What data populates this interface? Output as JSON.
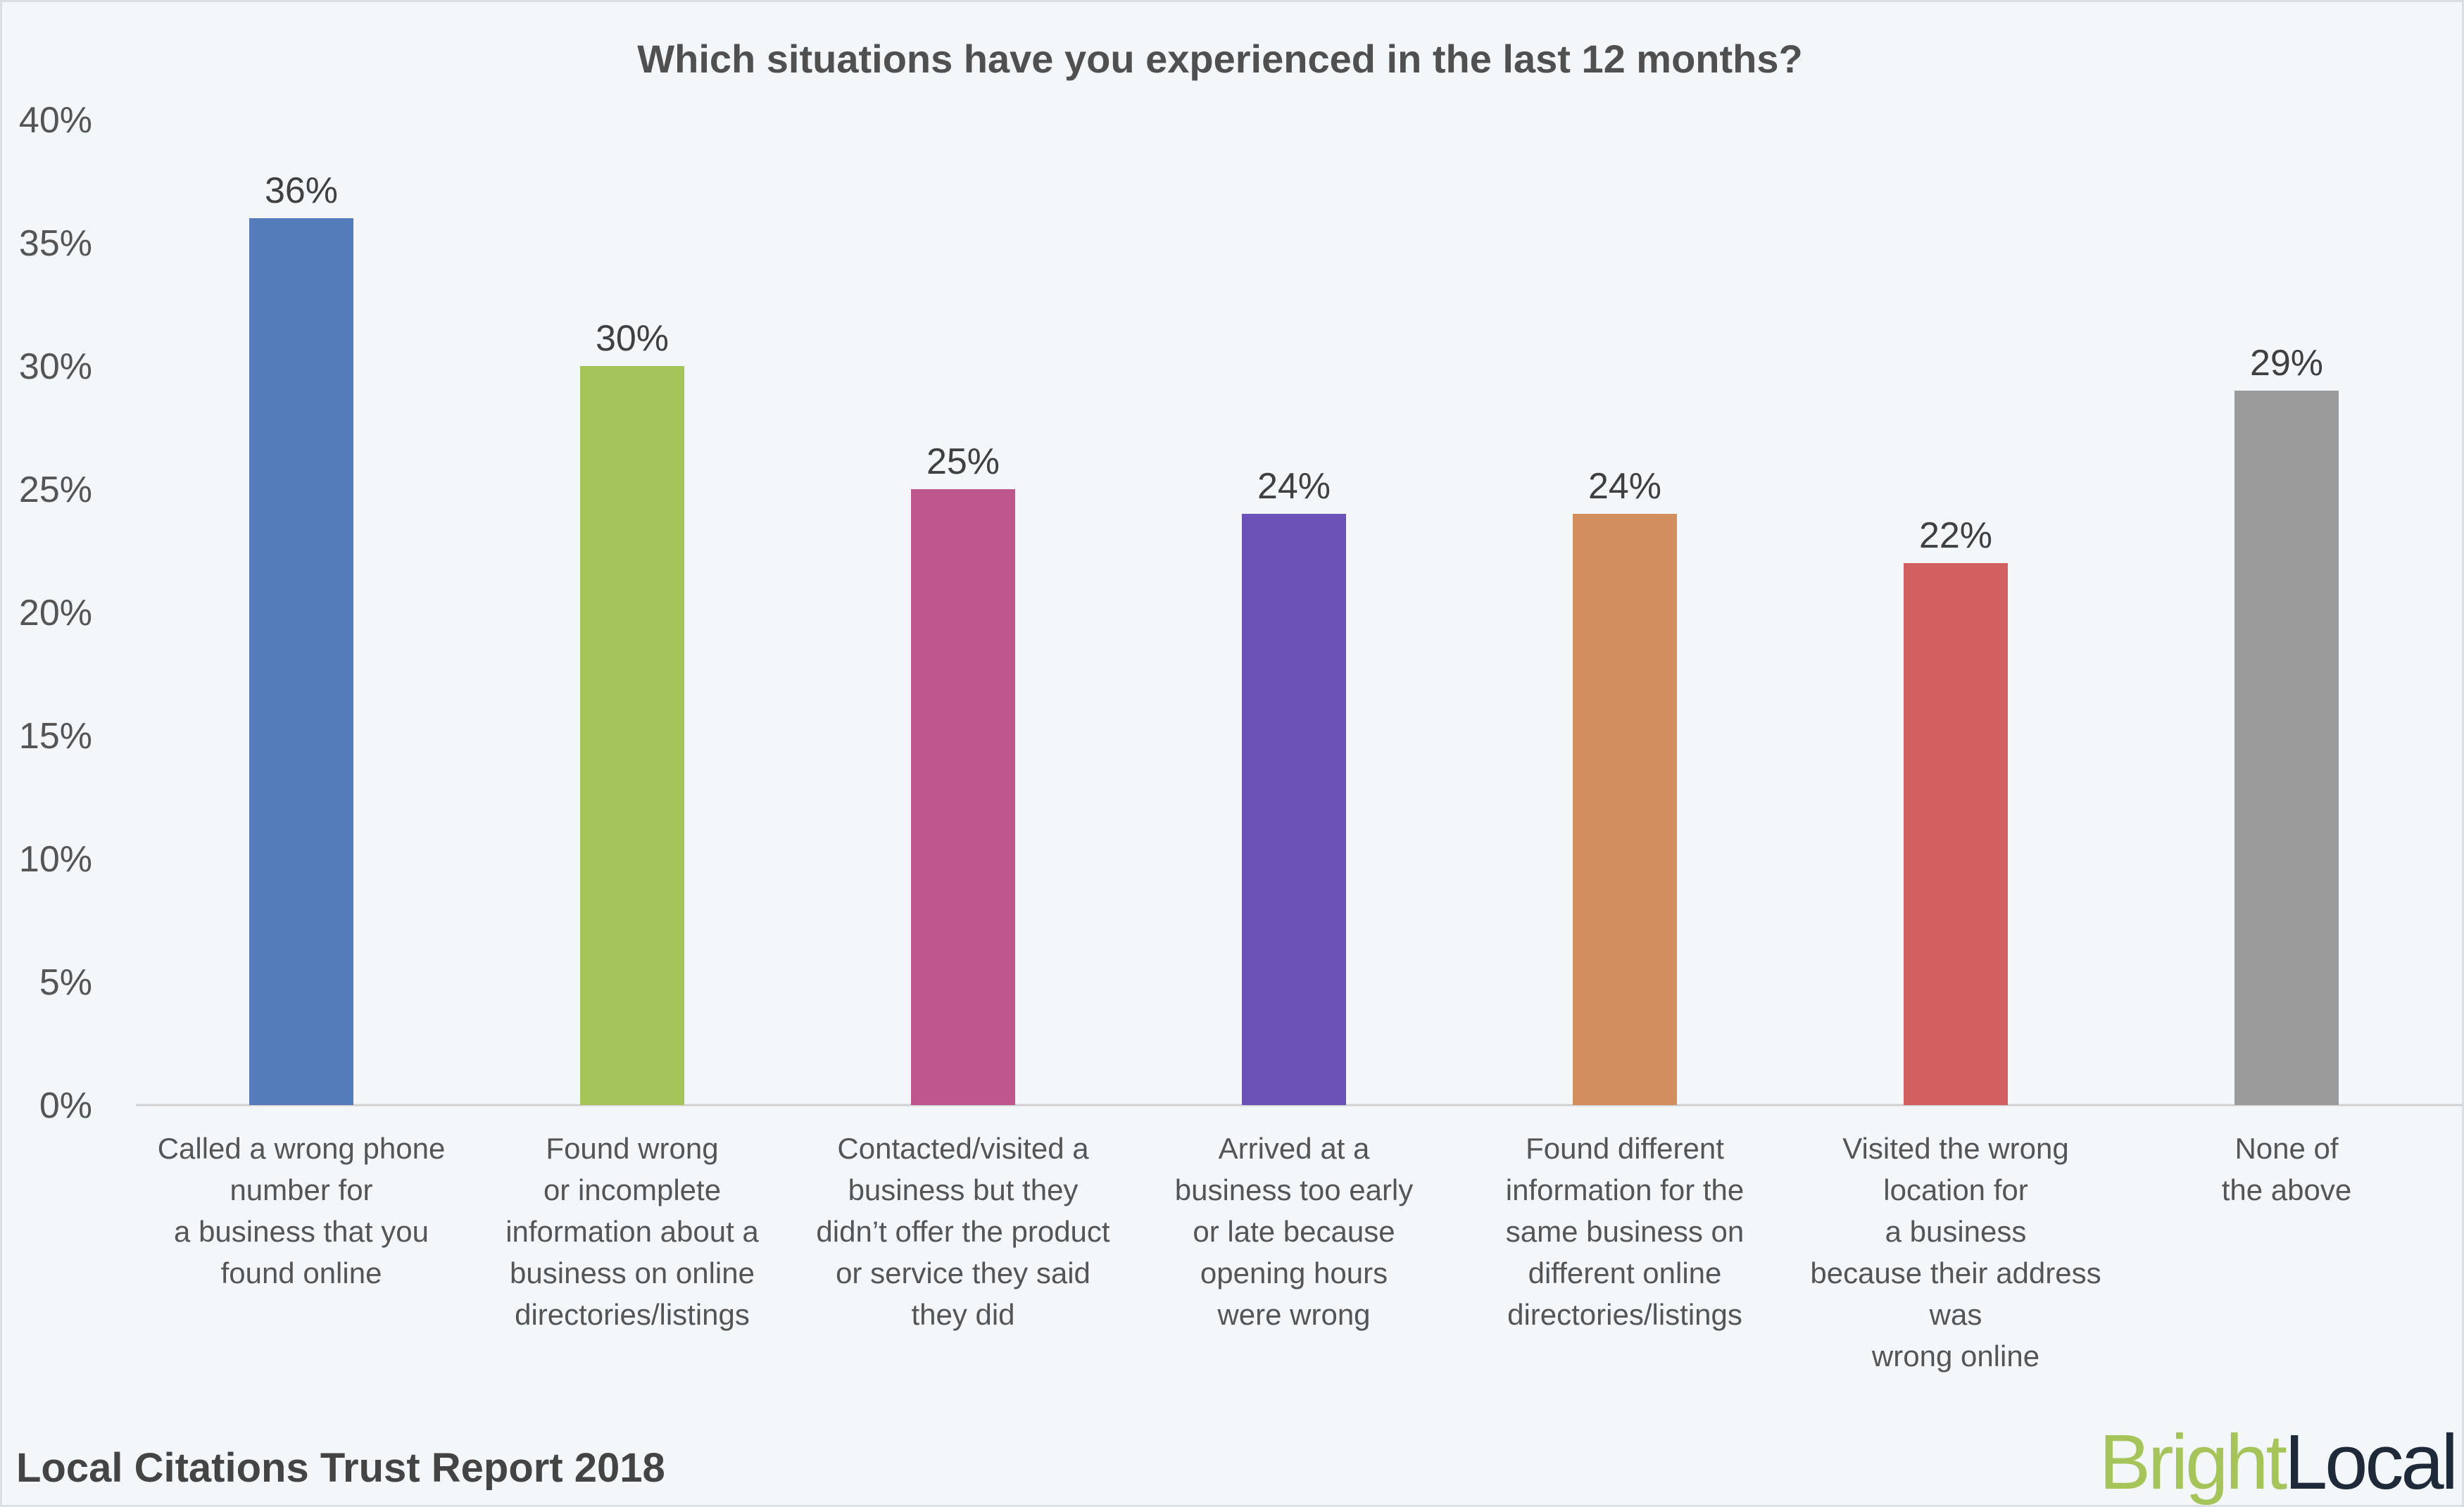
{
  "chart_data": {
    "type": "bar",
    "title": "Which situations have you experienced in the last 12 months?",
    "xlabel": "",
    "ylabel": "",
    "ylim": [
      0,
      40
    ],
    "yticks": [
      "0%",
      "5%",
      "10%",
      "15%",
      "20%",
      "25%",
      "30%",
      "35%",
      "40%"
    ],
    "grid": false,
    "categories": [
      [
        "Called a wrong phone",
        "number for",
        "a business that you",
        "found online"
      ],
      [
        "Found wrong",
        "or incomplete",
        "information about a",
        "business on online",
        "directories/listings"
      ],
      [
        "Contacted/visited a",
        "business but they",
        "didn’t offer the product",
        "or service they said",
        "they did"
      ],
      [
        "Arrived at a",
        "business too early",
        "or late because",
        "opening hours",
        "were wrong"
      ],
      [
        "Found different",
        "information for the",
        "same business on",
        "different online",
        "directories/listings"
      ],
      [
        "Visited the wrong",
        "location for",
        "a business",
        "because their address",
        "was",
        "wrong online"
      ],
      [
        "None of",
        "the above"
      ]
    ],
    "values": [
      36,
      30,
      25,
      24,
      24,
      22,
      29
    ],
    "data_labels": [
      "36%",
      "30%",
      "25%",
      "24%",
      "24%",
      "22%",
      "29%"
    ],
    "colors": [
      "#557cba",
      "#a5c55a",
      "#be578e",
      "#6b52b6",
      "#d28e5e",
      "#d26060",
      "#9b9b9b"
    ]
  },
  "footer": {
    "report": "Local Citations Trust Report 2018",
    "logo_part1": "Bright",
    "logo_part2": "Local",
    "logo_colors": [
      "#a5c55a",
      "#1e2a3a"
    ]
  }
}
